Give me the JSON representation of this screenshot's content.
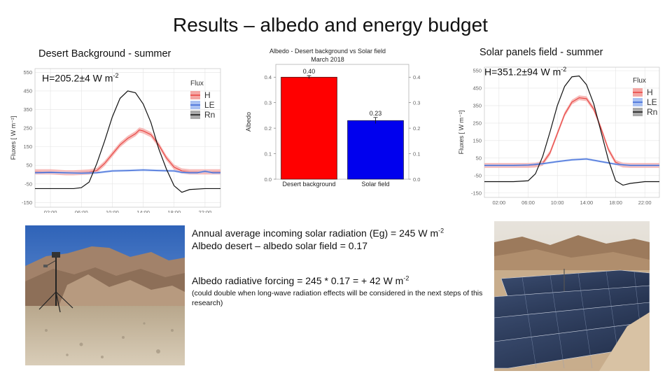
{
  "slide": {
    "title": "Results – albedo and energy budget",
    "left_panel_label": "Desert Background - summer",
    "right_panel_label": "Solar panels field - summer",
    "left_h_text": "H=205.2±4 W m",
    "left_h_exp": "-2",
    "right_h_text": "H=351.2±94 W m",
    "right_h_exp": "-2",
    "text": {
      "line1": "Annual average incoming solar radiation (Eg) = 245 W m",
      "line1_exp": "-2",
      "line2": "Albedo desert – albedo solar field = 0.17",
      "line3": "Albedo radiative forcing = 245 * 0.17 = + 42 W m",
      "line3_exp": "-2",
      "note": "(could double when long-wave radiation effects will be considered in the next steps of this research)"
    }
  },
  "chart_data": [
    {
      "type": "line",
      "ylabel": "Fluxes [ W m⁻²]",
      "yticks": [
        550,
        450,
        350,
        250,
        150,
        50,
        -50,
        -150
      ],
      "ylim": [
        -175,
        570
      ],
      "xticks": [
        "02:00",
        "06:00",
        "10:00",
        "14:00",
        "18:00",
        "22:00"
      ],
      "xtick_hours": [
        2,
        6,
        10,
        14,
        18,
        22
      ],
      "xlim": [
        0,
        24
      ],
      "legend_title": "Flux",
      "legend_position": "right",
      "colors": {
        "H": "#e8423f",
        "LE": "#3a66d6",
        "Rn": "#111111",
        "H_band": "#f4a6a3",
        "LE_band": "#a9c1f2"
      },
      "series": [
        {
          "name": "H",
          "x": [
            0,
            2,
            4,
            5,
            6,
            7,
            8,
            9,
            10,
            11,
            12,
            13,
            13.5,
            14,
            15,
            16,
            17,
            18,
            19,
            20,
            22,
            24
          ],
          "values": [
            15,
            15,
            10,
            10,
            12,
            14,
            22,
            60,
            110,
            160,
            195,
            220,
            240,
            235,
            215,
            160,
            90,
            40,
            20,
            15,
            15,
            15
          ]
        },
        {
          "name": "LE",
          "x": [
            0,
            2,
            4,
            6,
            8,
            10,
            12,
            14,
            16,
            18,
            19,
            20,
            21,
            22,
            23,
            24
          ],
          "values": [
            10,
            12,
            10,
            8,
            10,
            20,
            22,
            25,
            22,
            20,
            12,
            10,
            10,
            18,
            10,
            10
          ]
        },
        {
          "name": "Rn",
          "x": [
            0,
            2,
            4,
            5,
            6,
            7,
            8,
            9,
            10,
            11,
            12,
            13,
            14,
            15,
            16,
            17,
            18,
            19,
            20,
            22,
            24
          ],
          "values": [
            -75,
            -75,
            -75,
            -75,
            -70,
            -40,
            60,
            180,
            310,
            410,
            450,
            440,
            380,
            280,
            140,
            30,
            -60,
            -95,
            -80,
            -75,
            -75
          ]
        }
      ]
    },
    {
      "type": "bar",
      "title": "Albedo - Desert background vs Solar field",
      "subtitle": "March 2018",
      "ylabel": "Albedo",
      "categories": [
        "Desert background",
        "Solar field"
      ],
      "values": [
        0.4,
        0.23
      ],
      "value_labels": [
        "0.40",
        "0.23"
      ],
      "errors": [
        0.006,
        0.012
      ],
      "yticks": [
        0.0,
        0.1,
        0.2,
        0.3,
        0.4
      ],
      "ytick_labels": [
        "0.0",
        "0.1",
        "0.2",
        "0.3",
        "0.4"
      ],
      "ylim": [
        0,
        0.45
      ],
      "colors": [
        "#ff0000",
        "#0000ee"
      ]
    },
    {
      "type": "line",
      "ylabel": "Fluxes [ W m⁻²]",
      "yticks": [
        550,
        450,
        350,
        250,
        150,
        50,
        -50,
        -150
      ],
      "ylim": [
        -175,
        570
      ],
      "xticks": [
        "02:00",
        "06:00",
        "10:00",
        "14:00",
        "18:00",
        "22:00"
      ],
      "xtick_hours": [
        2,
        6,
        10,
        14,
        18,
        22
      ],
      "xlim": [
        0,
        24
      ],
      "legend_title": "Flux",
      "legend_position": "right",
      "colors": {
        "H": "#e8423f",
        "LE": "#3a66d6",
        "Rn": "#111111",
        "H_band": "#f4a6a3",
        "LE_band": "#a9c1f2"
      },
      "series": [
        {
          "name": "H",
          "x": [
            0,
            2,
            4,
            6,
            7,
            8,
            9,
            10,
            11,
            12,
            13,
            14,
            15,
            16,
            17,
            18,
            19,
            20,
            22,
            24
          ],
          "values": [
            8,
            8,
            8,
            8,
            10,
            20,
            80,
            190,
            300,
            370,
            395,
            390,
            330,
            220,
            100,
            25,
            10,
            8,
            8,
            8
          ]
        },
        {
          "name": "LE",
          "x": [
            0,
            2,
            4,
            6,
            8,
            10,
            12,
            14,
            16,
            18,
            20,
            22,
            24
          ],
          "values": [
            8,
            8,
            8,
            10,
            18,
            30,
            40,
            45,
            30,
            15,
            8,
            8,
            8
          ]
        },
        {
          "name": "Rn",
          "x": [
            0,
            2,
            4,
            6,
            7,
            8,
            9,
            10,
            11,
            12,
            13,
            14,
            15,
            16,
            17,
            18,
            19,
            20,
            22,
            24
          ],
          "values": [
            -85,
            -85,
            -85,
            -80,
            -40,
            60,
            200,
            350,
            460,
            515,
            520,
            470,
            360,
            200,
            40,
            -80,
            -105,
            -95,
            -85,
            -85
          ]
        }
      ]
    }
  ]
}
